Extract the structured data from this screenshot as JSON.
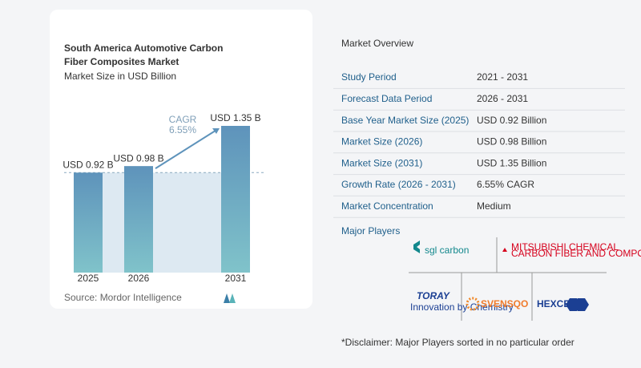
{
  "chart_data": {
    "type": "bar",
    "title": "South America Automotive Carbon Fiber Composites Market",
    "subtitle": "Market Size in USD Billion",
    "categories": [
      "2025",
      "2026",
      "2031"
    ],
    "values": [
      0.92,
      0.98,
      1.35
    ],
    "value_labels": [
      "USD 0.92 B",
      "USD 0.98 B",
      "USD 1.35 B"
    ],
    "color": "#5e93bb",
    "annotations": [
      "CAGR",
      "6.55%"
    ],
    "source": "Source: Mordor Intelligence"
  },
  "overview": {
    "title": "Market Overview",
    "rows": [
      [
        "Study Period",
        "2021 - 2031"
      ],
      [
        "Forecast Data Period",
        "2026 - 2031"
      ],
      [
        "Base Year Market Size (2025)",
        "USD 0.92 Billion"
      ],
      [
        "Market Size (2026)",
        "USD 0.98 Billion"
      ],
      [
        "Market Size (2031)",
        "USD 1.35 Billion"
      ],
      [
        "Growth Rate (2026 - 2031)",
        "6.55% CAGR"
      ],
      [
        "Market Concentration",
        "Medium"
      ]
    ]
  },
  "players": {
    "title": "Major Players",
    "logos": [
      "sgl carbon",
      "MITSUBISHI CHEMICAL",
      "CARBON FIBER AND COMPOSITES",
      "TORAY",
      "Innovation by Chemistry",
      "SVENSQO",
      "HEXCEL"
    ]
  },
  "disclaimer": "*Disclaimer: Major Players sorted in no particular order"
}
